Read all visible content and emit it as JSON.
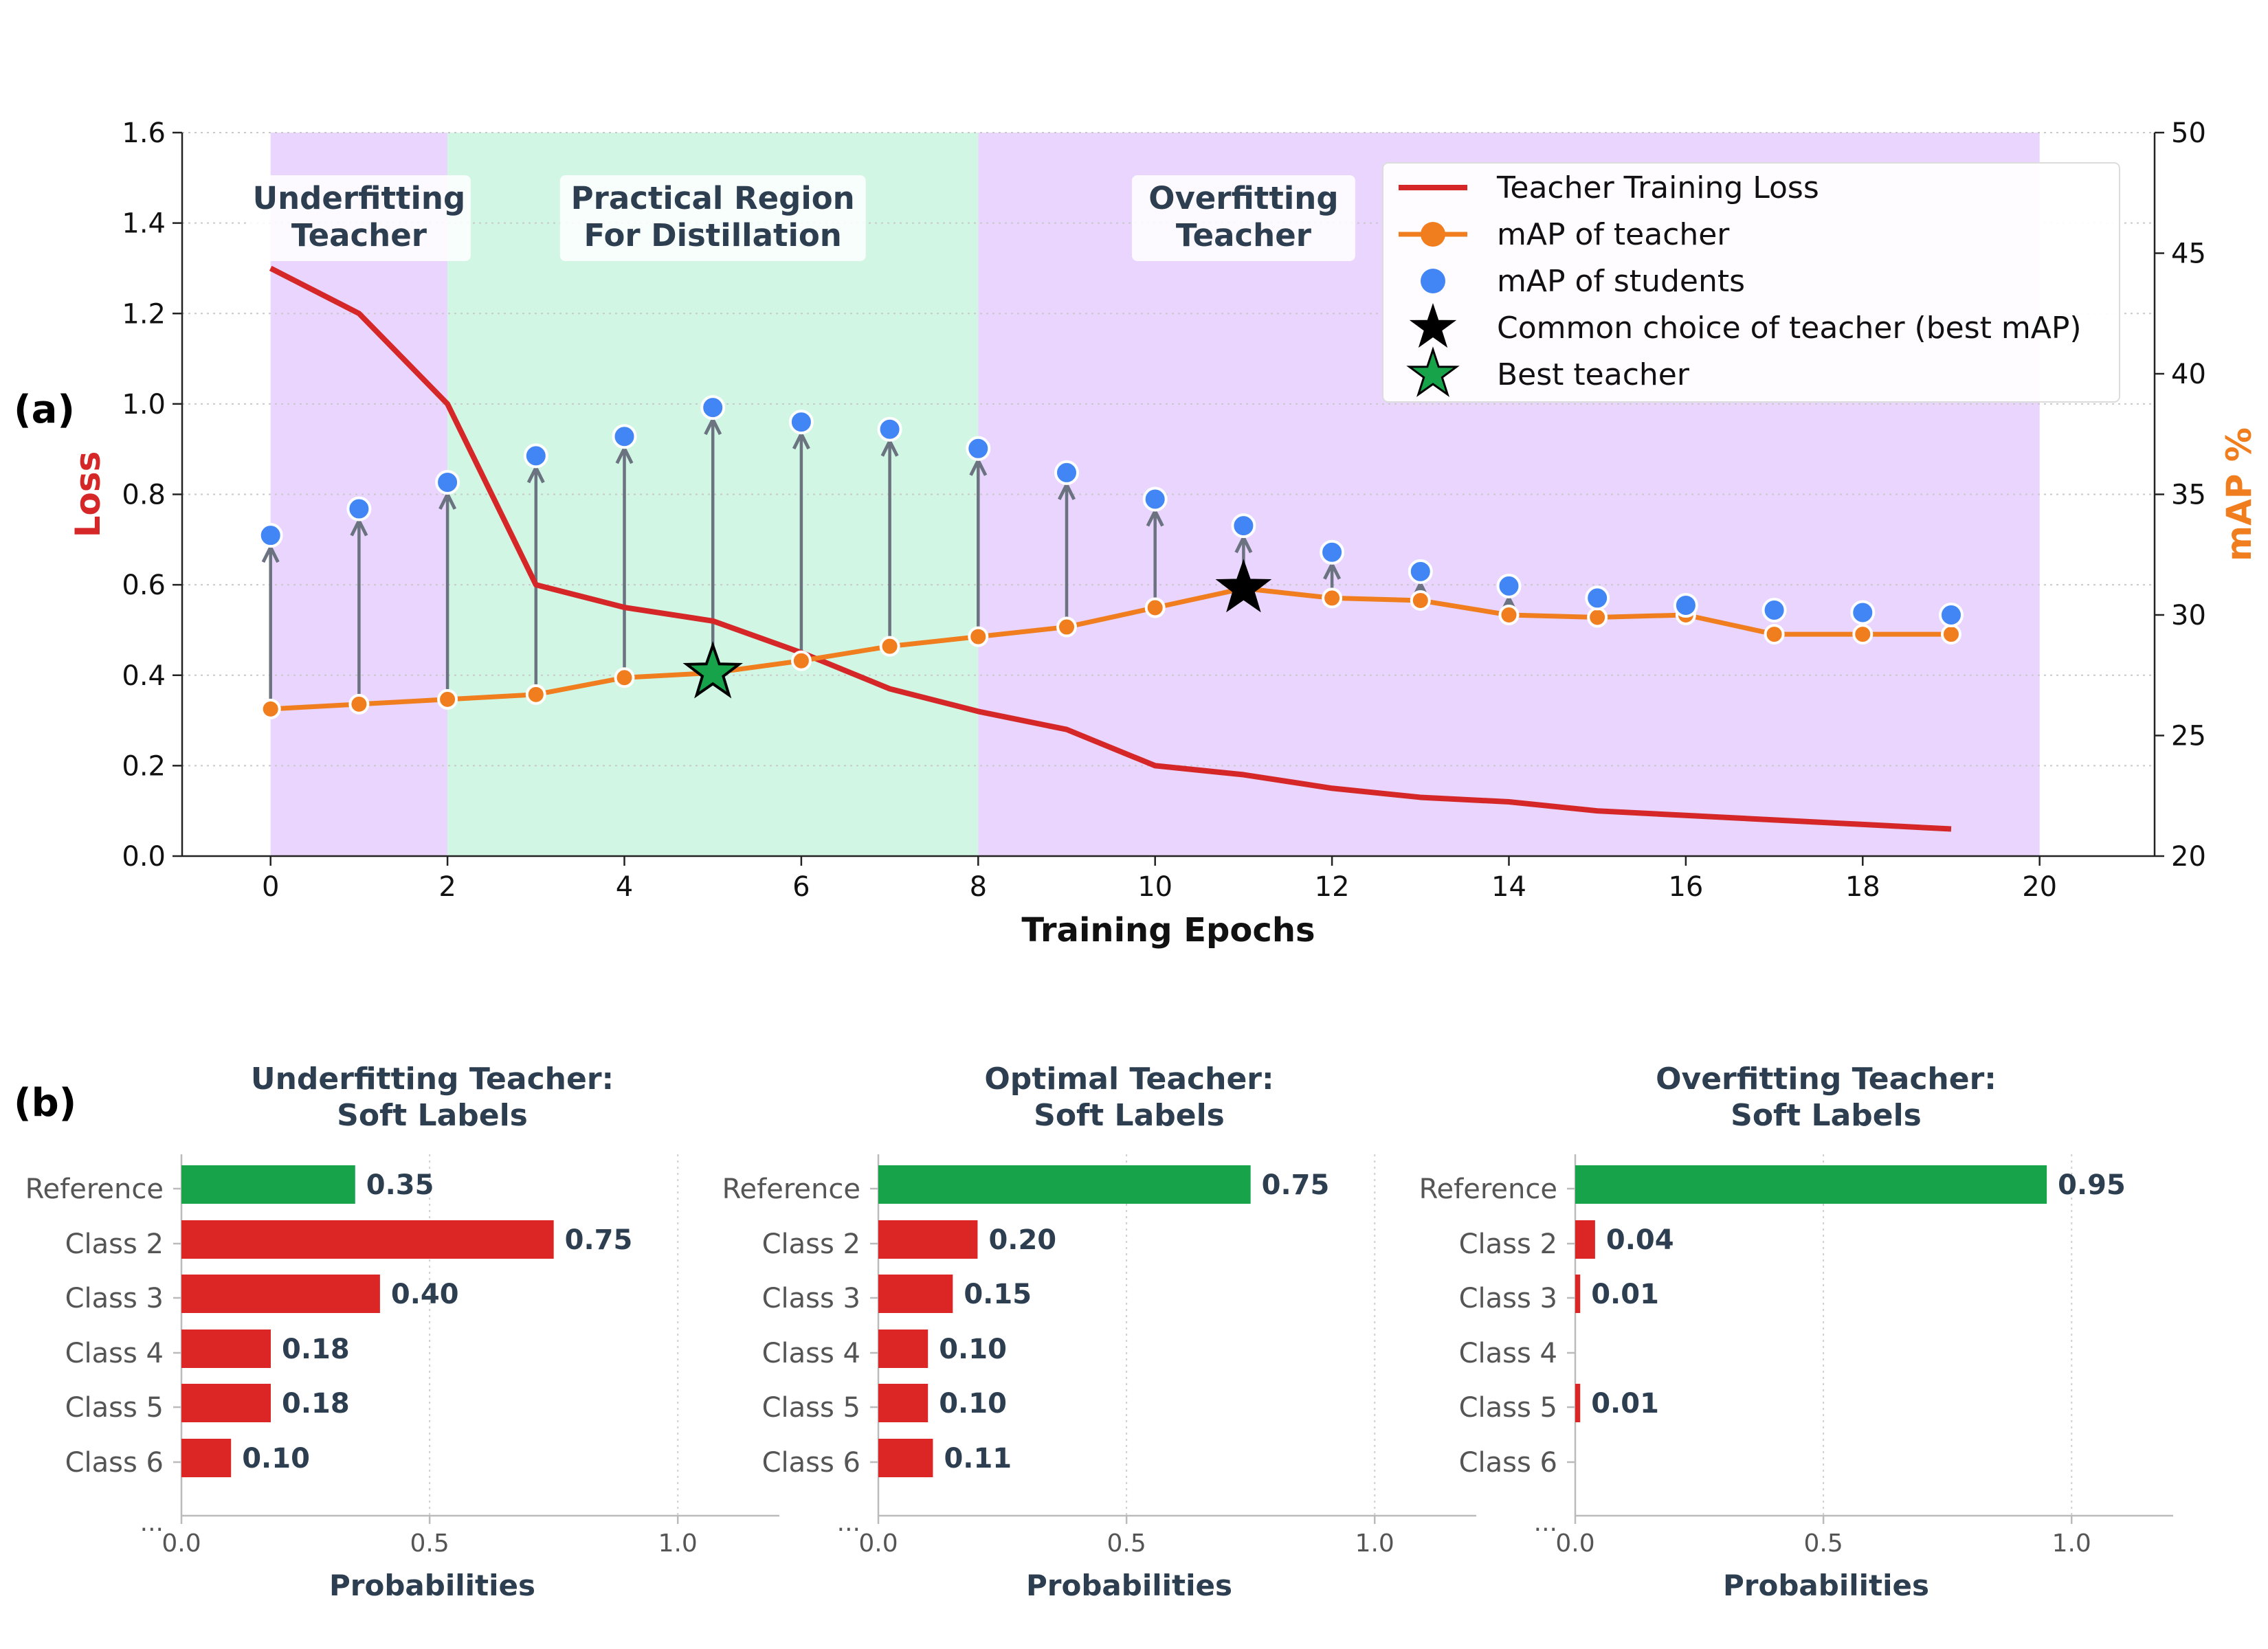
{
  "panel_labels": {
    "a": "(a)",
    "b": "(b)"
  },
  "colors": {
    "loss": "#d62728",
    "teacher_map": "#f07d1e",
    "students": "#4285f4",
    "arrow": "#6b7280",
    "region_underfit": "#e9d5fd",
    "region_practical": "#d1f7e4",
    "best_star": "#16a34a",
    "bar_reference": "#16a34a",
    "bar_class": "#dc2626",
    "title_text": "#2c3e50"
  },
  "chart_data": [
    {
      "type": "line",
      "xlabel": "Training Epochs",
      "ylabel": "Loss",
      "y2label": "mAP %",
      "xlim": [
        -1,
        21.3
      ],
      "ylim": [
        0,
        1.6
      ],
      "y2lim": [
        20,
        50
      ],
      "xticks": [
        "0",
        "2",
        "4",
        "6",
        "8",
        "10",
        "12",
        "14",
        "16",
        "18",
        "20"
      ],
      "yticks": [
        "0.0",
        "0.2",
        "0.4",
        "0.6",
        "0.8",
        "1.0",
        "1.2",
        "1.4",
        "1.6"
      ],
      "y2ticks": [
        "20",
        "25",
        "30",
        "35",
        "40",
        "45",
        "50"
      ],
      "grid": "horizontal dotted",
      "regions": [
        {
          "label_line1": "Underfitting",
          "label_line2": "Teacher",
          "x_start": 0,
          "x_end": 2,
          "kind": "underfit"
        },
        {
          "label_line1": "Practical Region",
          "label_line2": "For Distillation",
          "x_start": 2,
          "x_end": 8,
          "kind": "practical"
        },
        {
          "label_line1": "Overfitting",
          "label_line2": "Teacher",
          "x_start": 8,
          "x_end": 20,
          "kind": "overfit"
        }
      ],
      "x": [
        0,
        1,
        2,
        3,
        4,
        5,
        6,
        7,
        8,
        9,
        10,
        11,
        12,
        13,
        14,
        15,
        16,
        17,
        18,
        19
      ],
      "series": [
        {
          "name": "Teacher Training Loss",
          "axis": "left",
          "values": [
            1.3,
            1.2,
            1.0,
            0.6,
            0.55,
            0.52,
            0.45,
            0.37,
            0.32,
            0.28,
            0.2,
            0.18,
            0.15,
            0.13,
            0.12,
            0.1,
            0.09,
            0.08,
            0.07,
            0.06
          ]
        },
        {
          "name": "mAP of teacher",
          "axis": "right",
          "values": [
            26.1,
            26.3,
            26.5,
            26.7,
            27.4,
            27.6,
            28.1,
            28.7,
            29.1,
            29.5,
            30.3,
            31.1,
            30.7,
            30.6,
            30.0,
            29.9,
            30.0,
            29.2,
            29.2,
            29.2
          ]
        },
        {
          "name": "mAP of students",
          "axis": "right",
          "values": [
            33.3,
            34.4,
            35.5,
            36.6,
            37.4,
            38.6,
            38.0,
            37.7,
            36.9,
            35.9,
            34.8,
            33.7,
            32.6,
            31.8,
            31.2,
            30.7,
            30.4,
            30.2,
            30.1,
            30.0
          ]
        }
      ],
      "markers": [
        {
          "name": "Common choice of teacher (best mAP)",
          "x": 11,
          "y": 31.1
        },
        {
          "name": "Best teacher",
          "x": 5,
          "y": 27.6
        }
      ],
      "legend": {
        "placement": "top-right",
        "entries": [
          "Teacher Training Loss",
          "mAP of teacher",
          "mAP of students",
          "Common choice of teacher (best mAP)",
          "Best teacher"
        ]
      }
    },
    {
      "type": "bar",
      "orientation": "horizontal",
      "title_line1": "Underfitting Teacher:",
      "title_line2": "Soft Labels",
      "xlabel": "Probabilities",
      "xlim": [
        0,
        1.08
      ],
      "xticks": [
        "0.0",
        "0.5",
        "1.0"
      ],
      "categories": [
        "Reference",
        "Class 2",
        "Class 3",
        "Class 4",
        "Class 5",
        "Class 6"
      ],
      "continuation": "...",
      "values": [
        0.35,
        0.75,
        0.4,
        0.18,
        0.18,
        0.1
      ],
      "labels": [
        "0.35",
        "0.75",
        "0.40",
        "0.18",
        "0.18",
        "0.10"
      ]
    },
    {
      "type": "bar",
      "orientation": "horizontal",
      "title_line1": "Optimal Teacher:",
      "title_line2": "Soft Labels",
      "xlabel": "Probabilities",
      "xlim": [
        0,
        1.08
      ],
      "xticks": [
        "0.0",
        "0.5",
        "1.0"
      ],
      "categories": [
        "Reference",
        "Class 2",
        "Class 3",
        "Class 4",
        "Class 5",
        "Class 6"
      ],
      "continuation": "...",
      "values": [
        0.75,
        0.2,
        0.15,
        0.1,
        0.1,
        0.11
      ],
      "labels": [
        "0.75",
        "0.20",
        "0.15",
        "0.10",
        "0.10",
        "0.11"
      ]
    },
    {
      "type": "bar",
      "orientation": "horizontal",
      "title_line1": "Overfitting Teacher:",
      "title_line2": "Soft Labels",
      "xlabel": "Probabilities",
      "xlim": [
        0,
        1.08
      ],
      "xticks": [
        "0.0",
        "0.5",
        "1.0"
      ],
      "categories": [
        "Reference",
        "Class 2",
        "Class 3",
        "Class 4",
        "Class 5",
        "Class 6"
      ],
      "continuation": "...",
      "values": [
        0.95,
        0.04,
        0.01,
        0.0,
        0.01,
        0.0
      ],
      "labels": [
        "0.95",
        "0.04",
        "0.01",
        "",
        "0.01",
        ""
      ]
    }
  ]
}
